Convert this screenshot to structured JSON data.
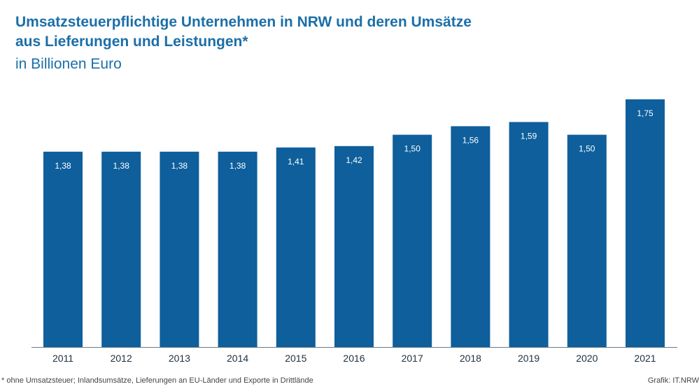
{
  "chart_data": {
    "type": "bar",
    "title": "Umsatzsteuerpflichtige Unternehmen  in NRW und deren Umsätze\naus Lieferungen und Leistungen*",
    "subtitle": "in Billionen Euro",
    "categories": [
      "2011",
      "2012",
      "2013",
      "2014",
      "2015",
      "2016",
      "2017",
      "2018",
      "2019",
      "2020",
      "2021"
    ],
    "values": [
      1.38,
      1.38,
      1.38,
      1.38,
      1.41,
      1.42,
      1.5,
      1.56,
      1.59,
      1.5,
      1.75
    ],
    "value_labels": [
      "1,38",
      "1,38",
      "1,38",
      "1,38",
      "1,41",
      "1,42",
      "1,50",
      "1,56",
      "1,59",
      "1,50",
      "1,75"
    ],
    "xlabel": "",
    "ylabel": "",
    "ylim": [
      0,
      1.75
    ],
    "grid": false,
    "legend": "none",
    "bar_color": "#0e5f9b",
    "title_color": "#1b6fa8"
  },
  "footnote": "* ohne Umsatzsteuer; Inlandsumsätze, Lieferungen an EU-Länder und Exporte in Drittlände",
  "source": "Grafik: IT.NRW"
}
